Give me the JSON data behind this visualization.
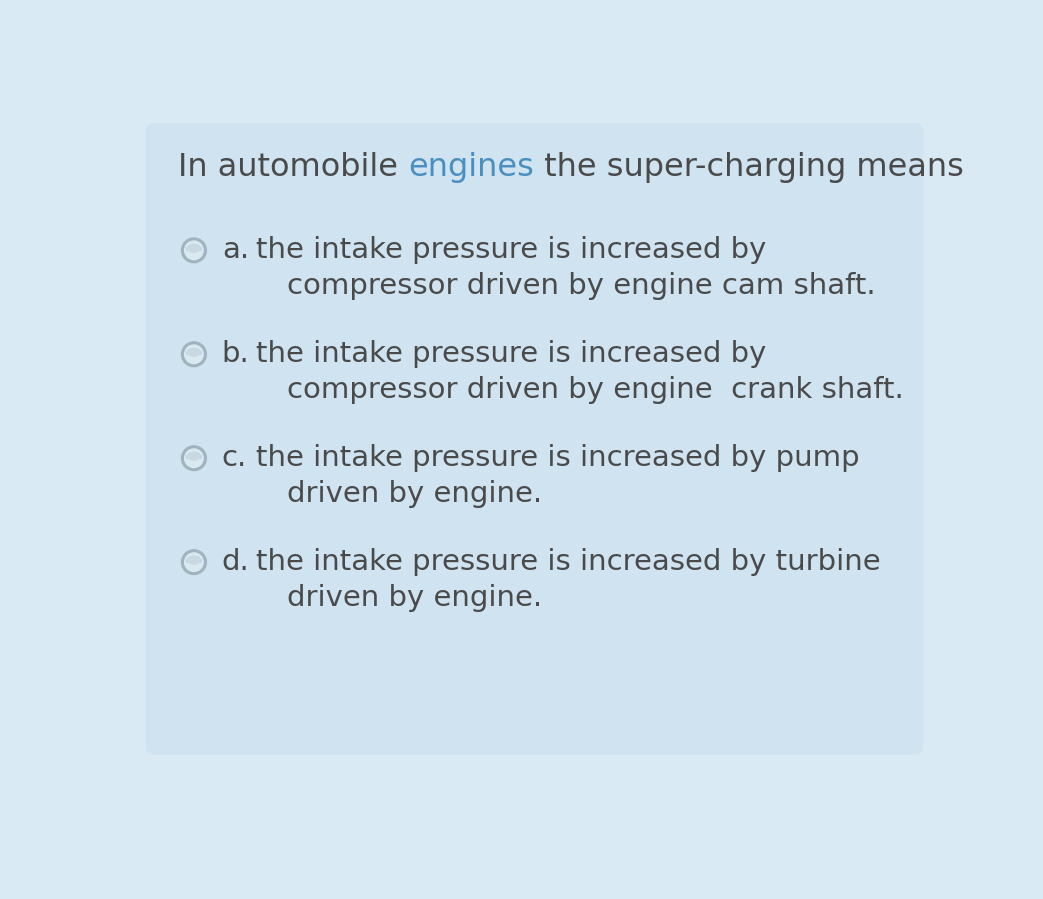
{
  "background_color": "#cfe3f0",
  "outer_bg_color": "#daeaf5",
  "title_normal": "In automobile ",
  "title_colored": "engines",
  "title_rest": " the super-charging means",
  "title_color_normal": "#4a4a4a",
  "title_color_highlight": "#4a8fbf",
  "title_fontsize": 23,
  "options": [
    {
      "label": "a.",
      "line1": "the intake pressure is increased by",
      "line2": "compressor driven by engine cam shaft."
    },
    {
      "label": "b.",
      "line1": "the intake pressure is increased by",
      "line2": "compressor driven by engine  crank shaft."
    },
    {
      "label": "c.",
      "line1": "the intake pressure is increased by pump",
      "line2": "driven by engine."
    },
    {
      "label": "d.",
      "line1": "the intake pressure is increased by turbine",
      "line2": "driven by engine."
    }
  ],
  "option_fontsize": 21,
  "option_text_color": "#4a4a4a",
  "radio_border_color": "#a0b4c0",
  "radio_fill_color": "#c8d8e4",
  "radio_highlight_color": "#dae8f0"
}
